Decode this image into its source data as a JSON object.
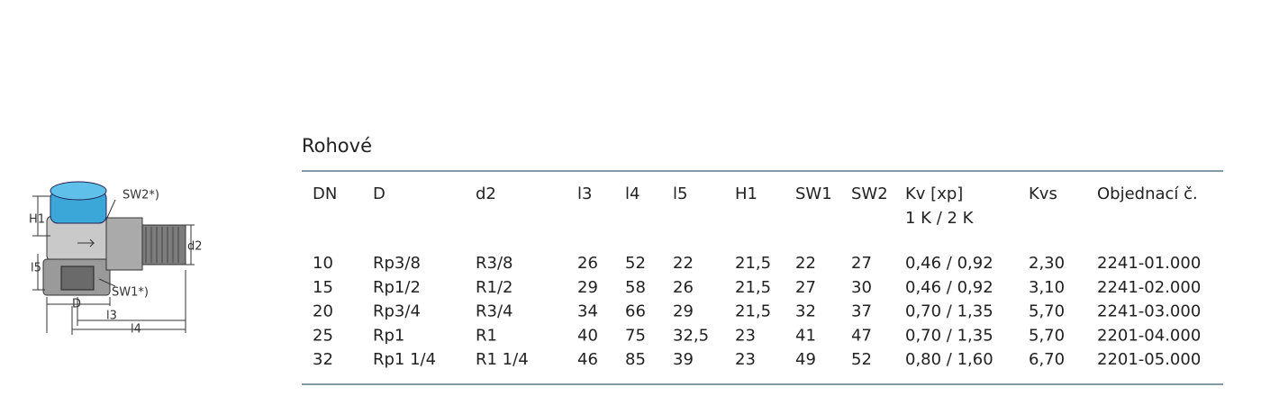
{
  "title": "Rohové",
  "table": {
    "headers": [
      "DN",
      "D",
      "d2",
      "l3",
      "l4",
      "l5",
      "H1",
      "SW1",
      "SW2",
      "Kv [xp]",
      "Kvs",
      "Objednací č."
    ],
    "subheader": "1 K / 2 K",
    "rows": [
      [
        "10",
        "Rp3/8",
        "R3/8",
        "26",
        "52",
        "22",
        "21,5",
        "22",
        "27",
        "0,46 / 0,92",
        "2,30",
        "2241-01.000"
      ],
      [
        "15",
        "Rp1/2",
        "R1/2",
        "29",
        "58",
        "26",
        "21,5",
        "27",
        "30",
        "0,46 / 0,92",
        "3,10",
        "2241-02.000"
      ],
      [
        "20",
        "Rp3/4",
        "R3/4",
        "34",
        "66",
        "29",
        "21,5",
        "32",
        "37",
        "0,70 / 1,35",
        "5,70",
        "2241-03.000"
      ],
      [
        "25",
        "Rp1",
        "R1",
        "40",
        "75",
        "32,5",
        "23",
        "41",
        "47",
        "0,70 / 1,35",
        "5,70",
        "2201-04.000"
      ],
      [
        "32",
        "Rp1 1/4",
        "R1 1/4",
        "46",
        "85",
        "39",
        "23",
        "49",
        "52",
        "0,80 / 1,60",
        "6,70",
        "2201-05.000"
      ]
    ]
  },
  "diagram": {
    "labels": [
      "SW2*)",
      "H1",
      "l5",
      "d2",
      "SW1*)",
      "D",
      "l3",
      "l4"
    ]
  }
}
